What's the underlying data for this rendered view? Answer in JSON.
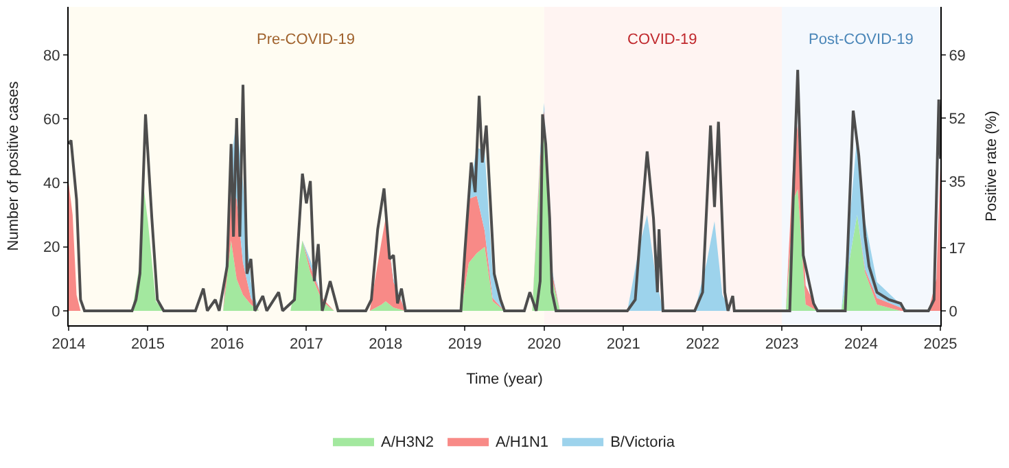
{
  "chart_data": {
    "type": "area",
    "stacked": true,
    "xlabel": "Time (year)",
    "ylabel": "Number of positive cases",
    "y2label": "Positive rate (%)",
    "x": [
      2014.0,
      2014.05,
      2014.1,
      2014.15,
      2014.8,
      2014.9,
      2014.95,
      2015.0,
      2015.1,
      2015.2,
      2015.95,
      2016.05,
      2016.12,
      2016.2,
      2016.3,
      2016.4,
      2016.8,
      2016.95,
      2017.05,
      2017.2,
      2017.35,
      2017.8,
      2017.95,
      2018.0,
      2018.1,
      2018.25,
      2018.95,
      2019.05,
      2019.15,
      2019.25,
      2019.35,
      2019.5,
      2019.85,
      2019.95,
      2020.0,
      2020.1,
      2020.2,
      2021.05,
      2021.2,
      2021.3,
      2021.4,
      2021.5,
      2021.9,
      2022.05,
      2022.15,
      2022.25,
      2022.35,
      2023.05,
      2023.15,
      2023.2,
      2023.3,
      2023.45,
      2023.75,
      2023.88,
      2023.95,
      2024.05,
      2024.2,
      2024.5,
      2024.6,
      2024.85,
      2024.95,
      2025.0
    ],
    "series": [
      {
        "name": "A/H3N2",
        "color": "#a3e89f",
        "values": [
          0,
          0,
          0,
          0,
          0,
          15,
          38,
          28,
          3,
          0,
          0,
          22,
          10,
          5,
          2,
          0,
          0,
          22,
          12,
          3,
          0,
          0,
          2,
          3,
          1,
          0,
          0,
          15,
          18,
          20,
          3,
          0,
          0,
          45,
          55,
          10,
          0,
          0,
          0,
          0,
          0,
          0,
          0,
          0,
          0,
          0,
          0,
          0,
          35,
          38,
          2,
          0,
          0,
          20,
          30,
          12,
          2,
          0,
          0,
          0,
          0,
          0
        ]
      },
      {
        "name": "A/H1N1",
        "color": "#f88a87",
        "values": [
          40,
          30,
          5,
          0,
          0,
          0,
          0,
          0,
          0,
          0,
          0,
          15,
          25,
          10,
          2,
          0,
          0,
          0,
          2,
          1,
          0,
          0,
          20,
          26,
          8,
          0,
          0,
          20,
          18,
          5,
          1,
          0,
          0,
          3,
          8,
          2,
          0,
          0,
          0,
          0,
          0,
          0,
          0,
          0,
          0,
          0,
          0,
          0,
          15,
          20,
          6,
          0,
          0,
          0,
          0,
          1,
          2,
          1,
          0,
          0,
          10,
          45
        ]
      },
      {
        "name": "B/Victoria",
        "color": "#9dd3ec",
        "values": [
          0,
          0,
          0,
          0,
          0,
          0,
          0,
          0,
          0,
          0,
          0,
          10,
          25,
          25,
          5,
          0,
          0,
          0,
          2,
          0,
          0,
          0,
          0,
          0,
          1,
          0,
          0,
          2,
          15,
          25,
          8,
          0,
          0,
          2,
          2,
          1,
          0,
          0,
          20,
          30,
          12,
          0,
          0,
          15,
          28,
          5,
          0,
          0,
          0,
          0,
          0,
          0,
          0,
          15,
          25,
          15,
          5,
          1,
          0,
          0,
          0,
          0
        ]
      },
      {
        "type": "line",
        "axis": "y2",
        "color": "#4d4d4d",
        "line_style": "solid",
        "x": [
          2014.0,
          2014.03,
          2014.1,
          2014.15,
          2014.2,
          2014.8,
          2014.85,
          2014.9,
          2014.97,
          2015.05,
          2015.12,
          2015.2,
          2015.6,
          2015.7,
          2015.75,
          2015.85,
          2015.9,
          2016.0,
          2016.05,
          2016.08,
          2016.12,
          2016.16,
          2016.2,
          2016.25,
          2016.3,
          2016.35,
          2016.45,
          2016.5,
          2016.65,
          2016.7,
          2016.85,
          2016.95,
          2017.0,
          2017.05,
          2017.1,
          2017.15,
          2017.2,
          2017.3,
          2017.4,
          2017.75,
          2017.82,
          2017.9,
          2017.98,
          2018.05,
          2018.1,
          2018.15,
          2018.2,
          2018.25,
          2018.95,
          2019.0,
          2019.08,
          2019.13,
          2019.18,
          2019.22,
          2019.27,
          2019.32,
          2019.37,
          2019.45,
          2019.5,
          2019.75,
          2019.82,
          2019.9,
          2019.95,
          2019.98,
          2020.02,
          2020.07,
          2020.1,
          2020.15,
          2021.05,
          2021.15,
          2021.2,
          2021.3,
          2021.38,
          2021.43,
          2021.45,
          2021.5,
          2021.9,
          2022.0,
          2022.1,
          2022.15,
          2022.2,
          2022.28,
          2022.32,
          2022.38,
          2022.4,
          2023.1,
          2023.15,
          2023.2,
          2023.27,
          2023.32,
          2023.4,
          2023.45,
          2023.8,
          2023.9,
          2023.97,
          2024.05,
          2024.1,
          2024.2,
          2024.35,
          2024.5,
          2024.55,
          2024.85,
          2024.92,
          2024.98,
          2025.0
        ],
        "values": [
          45,
          46,
          30,
          3,
          0,
          0,
          3,
          10,
          53,
          25,
          3,
          0,
          0,
          6,
          0,
          3,
          0,
          12,
          45,
          20,
          52,
          20,
          61,
          10,
          14,
          0,
          4,
          0,
          5,
          0,
          3,
          37,
          29,
          35,
          8,
          18,
          0,
          8,
          0,
          0,
          3,
          22,
          33,
          14,
          15,
          2,
          6,
          0,
          0,
          16,
          40,
          32,
          58,
          40,
          50,
          30,
          10,
          3,
          0,
          0,
          5,
          0,
          8,
          53,
          45,
          25,
          5,
          0,
          0,
          3,
          17,
          43,
          25,
          5,
          22,
          0,
          0,
          5,
          50,
          28,
          51,
          5,
          0,
          4,
          0,
          0,
          35,
          65,
          15,
          10,
          2,
          0,
          0,
          54,
          42,
          20,
          12,
          5,
          3,
          2,
          0,
          0,
          3,
          57,
          41
        ]
      }
    ],
    "xlim": [
      2014,
      2025
    ],
    "xticks": [
      2014,
      2015,
      2016,
      2017,
      2018,
      2019,
      2020,
      2021,
      2022,
      2023,
      2024,
      2025
    ],
    "ylim": [
      -4.5,
      95
    ],
    "yticks": [
      0,
      20,
      40,
      60,
      80
    ],
    "y2lim": [
      -3.9,
      82
    ],
    "y2ticks": [
      0,
      17,
      35,
      52,
      69
    ],
    "bands": [
      {
        "axis": "x",
        "from": 2014,
        "to": 2020,
        "label": "Pre-COVID-19",
        "color": "#fffcf2"
      },
      {
        "axis": "x",
        "from": 2020,
        "to": 2023,
        "label": "COVID-19",
        "color": "#fff4f2"
      },
      {
        "axis": "x",
        "from": 2023,
        "to": 2025,
        "label": "Post-COVID-19",
        "color": "#f4f8fd"
      }
    ],
    "grid": false,
    "legend": "bottom"
  }
}
